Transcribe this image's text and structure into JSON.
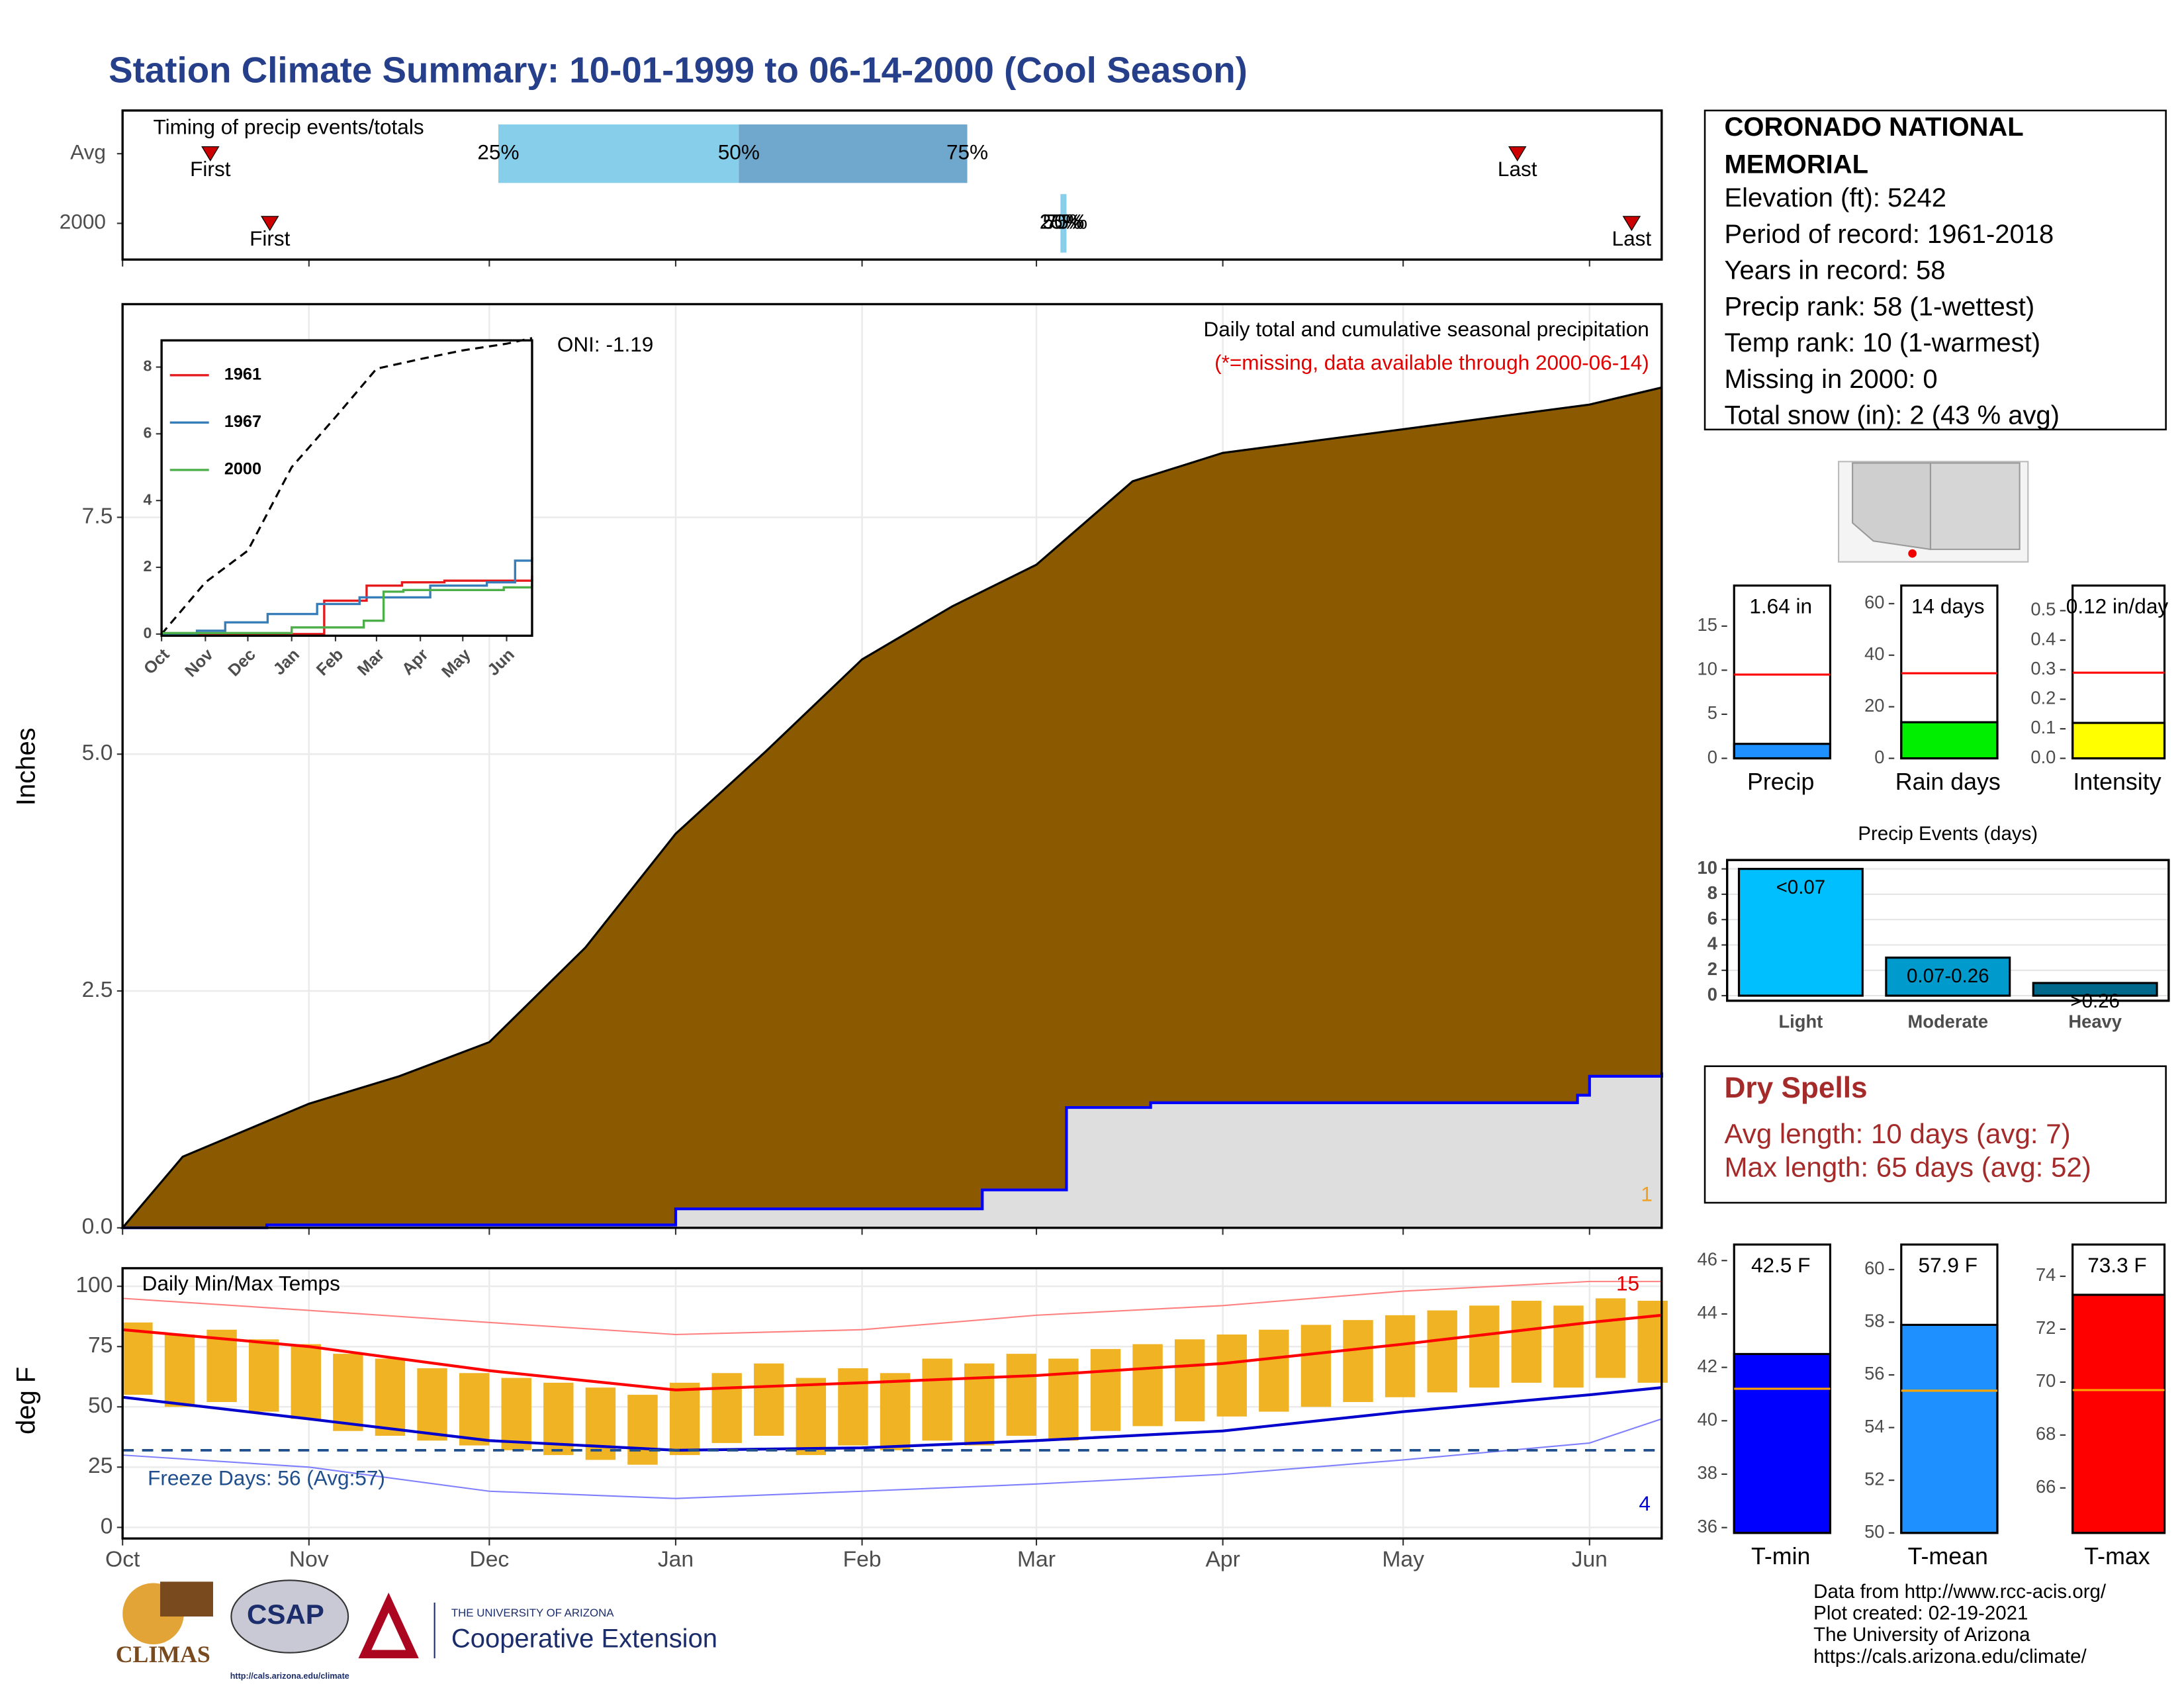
{
  "title": "Station Climate Summary: 10-01-1999 to 06-14-2000 (Cool Season)",
  "station": {
    "name_lines": [
      "CORONADO NATIONAL",
      "MEMORIAL"
    ],
    "lines": [
      "Elevation (ft): 5242",
      "Period of record: 1961-2018",
      "Years in record: 58",
      "Precip rank: 58 (1-wettest)",
      "Temp rank: 10 (1-warmest)",
      "Missing in 2000: 0",
      "Total snow (in): 2 (43 % avg)"
    ]
  },
  "dry_spells": {
    "title": "Dry Spells",
    "lines": [
      "Avg length: 10 days (avg: 7)",
      "Max length: 65 days (avg: 52)"
    ]
  },
  "footer": [
    "Data from http://www.rcc-acis.org/",
    "Plot created: 02-19-2021",
    "The University of Arizona",
    "https://cals.arizona.edu/climate/"
  ],
  "logos": {
    "climas": "CLIMAS",
    "csap": "CSAP",
    "csap_url": "http://cals.arizona.edu/climate",
    "ua": "THE UNIVERSITY OF ARIZONA",
    "ext": "Cooperative Extension"
  },
  "chart_data": [
    {
      "type": "timing",
      "label": "Timing of precip events/totals",
      "xlim": [
        0,
        256
      ],
      "first_label": "First",
      "last_label": "Last",
      "q_labels": [
        "25%",
        "50%",
        "75%"
      ],
      "colors": [
        "#87ceeb",
        "#6fa8cc"
      ],
      "marker_color": "#cc0000",
      "rows": [
        {
          "name": "Avg",
          "first": 14.6,
          "last": 232,
          "q25": 62.5,
          "q50": 102.5,
          "q75": 140.5
        },
        {
          "name": "2000",
          "first": 24.5,
          "last": 251,
          "q25": 156,
          "q50": 156.5,
          "q75": 157
        }
      ]
    },
    {
      "type": "area",
      "ylabel": "Inches",
      "xlim": [
        0,
        256
      ],
      "ylim": [
        0,
        9.75
      ],
      "yticks": [
        {
          "value": 0,
          "label": "0.0"
        },
        2.5,
        {
          "value": 5,
          "label": "5.0"
        },
        7.5
      ],
      "grid": true,
      "annotations": [
        "Daily total and cumulative seasonal precipitation",
        "(*=missing, data available through 2000-06-14)",
        "ONI: -1.19",
        "1"
      ],
      "series": [
        {
          "color": "#8b5a00",
          "x": [
            0,
            10,
            31,
            46,
            61,
            77,
            92,
            107,
            123,
            138,
            152,
            168,
            183,
            213,
            244,
            256
          ],
          "values": [
            0,
            0.75,
            1.31,
            1.6,
            1.96,
            2.96,
            4.16,
            5.03,
            6.0,
            6.56,
            7.0,
            7.88,
            8.18,
            8.43,
            8.69,
            8.87
          ]
        },
        {
          "color": "#0000ff",
          "fill": "#dedede",
          "step": true,
          "x": [
            0,
            24,
            92,
            143,
            157,
            171,
            242,
            244,
            256
          ],
          "values": [
            0,
            0.03,
            0.2,
            0.4,
            1.27,
            1.32,
            1.4,
            1.6,
            1.64
          ]
        }
      ]
    },
    {
      "type": "line",
      "xlim": [
        0,
        262
      ],
      "ylim": [
        -0.05,
        8.8
      ],
      "yticks": [
        0,
        2,
        4,
        6,
        8
      ],
      "xticks": [
        {
          "value": 0,
          "label": "Oct"
        },
        {
          "value": 31,
          "label": "Nov"
        },
        {
          "value": 61,
          "label": "Dec"
        },
        {
          "value": 92,
          "label": "Jan"
        },
        {
          "value": 123,
          "label": "Feb"
        },
        {
          "value": 152,
          "label": "Mar"
        },
        {
          "value": 183,
          "label": "Apr"
        },
        {
          "value": 213,
          "label": "May"
        },
        {
          "value": 244,
          "label": "Jun"
        }
      ],
      "mean": {
        "color": "#000000",
        "x": [
          0,
          31,
          61,
          92,
          123,
          152,
          183,
          213,
          244,
          262
        ],
        "values": [
          0,
          1.55,
          2.5,
          5.0,
          6.5,
          7.95,
          8.24,
          8.5,
          8.7,
          8.87
        ]
      },
      "series": [
        {
          "name": "1961",
          "color": "#e41a1c",
          "x": [
            0,
            112,
            115,
            145,
            170,
            200,
            262
          ],
          "values": [
            0,
            0,
            1.0,
            1.45,
            1.55,
            1.6,
            1.75
          ]
        },
        {
          "name": "1967",
          "color": "#377eb8",
          "x": [
            0,
            25,
            45,
            75,
            110,
            140,
            190,
            230,
            250,
            262
          ],
          "values": [
            0,
            0.1,
            0.35,
            0.6,
            0.9,
            1.1,
            1.45,
            1.55,
            2.2,
            2.3
          ]
        },
        {
          "name": "2000",
          "color": "#4daf4a",
          "x": [
            0,
            24,
            92,
            143,
            157,
            171,
            242,
            262
          ],
          "values": [
            0.03,
            0.03,
            0.2,
            0.4,
            1.27,
            1.32,
            1.4,
            1.64
          ]
        }
      ]
    },
    {
      "type": "bar",
      "categories": [
        "Precip"
      ],
      "values": [
        1.64
      ],
      "value_labels": [
        "1.64 in"
      ],
      "color": "#1e90ff",
      "average": 9.5,
      "average_color": "#ff0000",
      "ylim": [
        0,
        19.6
      ],
      "yticks": [
        0,
        5,
        10,
        15
      ]
    },
    {
      "type": "bar",
      "categories": [
        "Rain days"
      ],
      "values": [
        14
      ],
      "value_labels": [
        "14 days"
      ],
      "color": "#00ee00",
      "average": 33,
      "average_color": "#ff0000",
      "ylim": [
        0,
        67
      ],
      "yticks": [
        0,
        20,
        40,
        60
      ]
    },
    {
      "type": "bar",
      "categories": [
        "Intensity"
      ],
      "values": [
        0.12
      ],
      "value_labels": [
        "0.12 in/day"
      ],
      "color": "#ffff00",
      "average": 0.29,
      "average_color": "#ff0000",
      "ylim": [
        0,
        0.585
      ],
      "yticks": [
        {
          "value": 0,
          "label": "0.0"
        },
        0.1,
        0.2,
        0.3,
        0.4,
        0.5
      ]
    },
    {
      "type": "bar",
      "title": "Precip Events (days)",
      "categories": [
        "Light",
        "Moderate",
        "Heavy"
      ],
      "values": [
        10,
        3,
        1
      ],
      "value_labels": [
        "<0.07",
        "0.07-0.26",
        ">0.26"
      ],
      "colors": [
        "#00bfff",
        "#009acd",
        "#00688b"
      ],
      "ylim": [
        -0.4,
        10.7
      ],
      "yticks": [
        0,
        2,
        4,
        6,
        8,
        10
      ],
      "grid": true
    },
    {
      "type": "range_bar",
      "title": "Daily Min/Max Temps",
      "ylabel": "deg F",
      "xlim": [
        0,
        256
      ],
      "ylim": [
        -4.6,
        107.5
      ],
      "yticks": [
        0,
        25,
        50,
        75,
        100
      ],
      "grid": true,
      "xticks": [
        {
          "value": 0,
          "label": "Oct"
        },
        {
          "value": 31,
          "label": "Nov"
        },
        {
          "value": 61,
          "label": "Dec"
        },
        {
          "value": 92,
          "label": "Jan"
        },
        {
          "value": 123,
          "label": "Feb"
        },
        {
          "value": 152,
          "label": "Mar"
        },
        {
          "value": 183,
          "label": "Apr"
        },
        {
          "value": 213,
          "label": "May"
        },
        {
          "value": 244,
          "label": "Jun"
        }
      ],
      "bar_color": "#f0b323",
      "bar_x": [
        0,
        7,
        14,
        21,
        28,
        35,
        42,
        49,
        56,
        63,
        70,
        77,
        84,
        91,
        98,
        105,
        112,
        119,
        126,
        133,
        140,
        147,
        154,
        161,
        168,
        175,
        182,
        189,
        196,
        203,
        210,
        217,
        224,
        231,
        238,
        245,
        252
      ],
      "bar_max": [
        85,
        80,
        82,
        78,
        76,
        72,
        70,
        66,
        64,
        62,
        60,
        58,
        55,
        60,
        64,
        68,
        62,
        66,
        64,
        70,
        68,
        72,
        70,
        74,
        76,
        78,
        80,
        82,
        84,
        86,
        88,
        90,
        92,
        94,
        92,
        95,
        94
      ],
      "bar_min": [
        55,
        50,
        52,
        48,
        45,
        40,
        38,
        36,
        34,
        32,
        30,
        28,
        26,
        30,
        35,
        38,
        30,
        34,
        32,
        36,
        34,
        38,
        36,
        40,
        42,
        44,
        46,
        48,
        50,
        52,
        54,
        56,
        58,
        60,
        58,
        62,
        60
      ],
      "line_x": [
        0,
        31,
        61,
        92,
        123,
        152,
        183,
        213,
        244,
        256
      ],
      "series": [
        {
          "color": "#ff8080",
          "lw": 1,
          "values": [
            95,
            90,
            85,
            80,
            82,
            88,
            92,
            98,
            102,
            102
          ]
        },
        {
          "color": "#8080ff",
          "lw": 1,
          "values": [
            30,
            25,
            15,
            12,
            15,
            18,
            22,
            28,
            35,
            45
          ]
        },
        {
          "color": "#ff0000",
          "lw": 2,
          "values": [
            82,
            75,
            65,
            57,
            60,
            63,
            68,
            76,
            85,
            88
          ]
        },
        {
          "color": "#0000cc",
          "lw": 2,
          "values": [
            54,
            45,
            36,
            32,
            33,
            36,
            40,
            48,
            55,
            58
          ]
        }
      ],
      "freeze_line": 32,
      "freeze_color": "#1f4e8c",
      "freeze_label": "Freeze Days: 56 (Avg:57)",
      "annotations": [
        "15",
        "4"
      ]
    },
    {
      "type": "bar",
      "categories": [
        "T-min"
      ],
      "values": [
        42.5
      ],
      "value_labels": [
        "42.5 F"
      ],
      "color": "#0000ff",
      "average": 41.2,
      "average_color": "#ffa500",
      "ylim": [
        35.8,
        46.6
      ],
      "yticks": [
        36,
        38,
        40,
        42,
        44,
        46
      ]
    },
    {
      "type": "bar",
      "categories": [
        "T-mean"
      ],
      "values": [
        57.9
      ],
      "value_labels": [
        "57.9 F"
      ],
      "color": "#1e90ff",
      "average": 55.4,
      "average_color": "#ffa500",
      "ylim": [
        50,
        60.95
      ],
      "yticks": [
        50,
        52,
        54,
        56,
        58,
        60
      ]
    },
    {
      "type": "bar",
      "categories": [
        "T-max"
      ],
      "values": [
        73.3
      ],
      "value_labels": [
        "73.3 F"
      ],
      "color": "#ff0000",
      "average": 69.7,
      "average_color": "#ffa500",
      "ylim": [
        64.3,
        75.2
      ],
      "yticks": [
        66,
        68,
        70,
        72,
        74
      ]
    }
  ]
}
